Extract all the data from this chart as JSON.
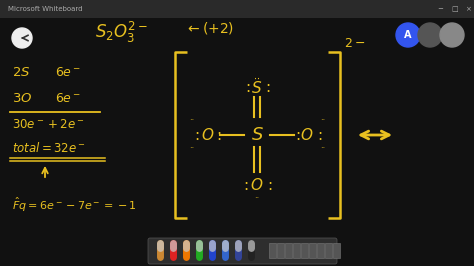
{
  "bg_color": "#111111",
  "whiteboard_color": "#1c1c1c",
  "text_color": "#e8c020",
  "fig_width": 4.74,
  "fig_height": 2.66,
  "dpi": 100,
  "titlebar_color": "#2a2a2a",
  "titlebar_text": "Microsoft Whiteboard",
  "back_btn_color": "#eeeeee",
  "avatar_colors": [
    "#3355ee",
    "#555555",
    "#888888"
  ],
  "toolbar_bg": "#333333",
  "pen_colors": [
    "#cc8833",
    "#dd2222",
    "#ee7700",
    "#22aa22",
    "#2244cc",
    "#3366cc",
    "#334499",
    "#222222"
  ],
  "toolbar_icon_color": "#666666",
  "bracket_lw": 1.8,
  "bond_lw": 1.5
}
